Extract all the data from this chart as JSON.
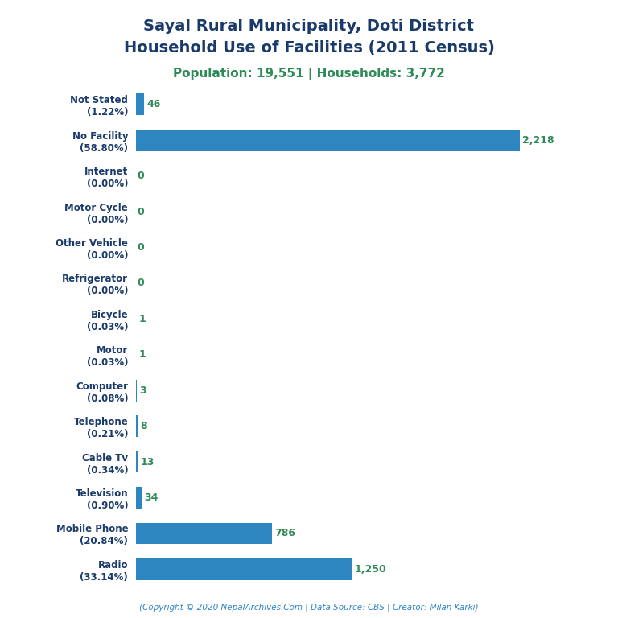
{
  "title_line1": "Sayal Rural Municipality, Doti District",
  "title_line2": "Household Use of Facilities (2011 Census)",
  "subtitle": "Population: 19,551 | Households: 3,772",
  "title_color": "#1a3a6b",
  "subtitle_color": "#2e8b57",
  "categories": [
    "Not Stated\n(1.22%)",
    "No Facility\n(58.80%)",
    "Internet\n(0.00%)",
    "Motor Cycle\n(0.00%)",
    "Other Vehicle\n(0.00%)",
    "Refrigerator\n(0.00%)",
    "Bicycle\n(0.03%)",
    "Motor\n(0.03%)",
    "Computer\n(0.08%)",
    "Telephone\n(0.21%)",
    "Cable Tv\n(0.34%)",
    "Television\n(0.90%)",
    "Mobile Phone\n(20.84%)",
    "Radio\n(33.14%)"
  ],
  "values": [
    46,
    2218,
    0,
    0,
    0,
    0,
    1,
    1,
    3,
    8,
    13,
    34,
    786,
    1250
  ],
  "bar_color": "#2e86c1",
  "label_color": "#2e8b57",
  "footer": "(Copyright © 2020 NepalArchives.Com | Data Source: CBS | Creator: Milan Karki)",
  "footer_color": "#2e86c1",
  "background_color": "#ffffff",
  "xlim": [
    0,
    2500
  ]
}
